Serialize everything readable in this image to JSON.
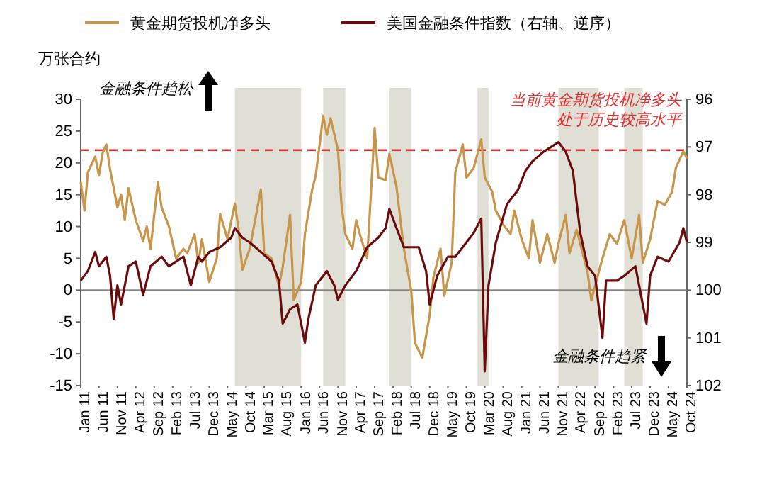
{
  "chart_data": {
    "type": "line",
    "ylabel": "万张合约",
    "legend": "top",
    "xlim": [
      "2011-01",
      "2024-10"
    ],
    "xticks": [
      {
        "value": "2011-01",
        "label": "Jan 11"
      },
      {
        "value": "2011-06",
        "label": "Jun 11"
      },
      {
        "value": "2011-11",
        "label": "Nov 11"
      },
      {
        "value": "2012-04",
        "label": "Apr 12"
      },
      {
        "value": "2012-09",
        "label": "Sep 12"
      },
      {
        "value": "2013-02",
        "label": "Feb 13"
      },
      {
        "value": "2013-07",
        "label": "Jul 13"
      },
      {
        "value": "2013-12",
        "label": "Dec 13"
      },
      {
        "value": "2014-05",
        "label": "May 14"
      },
      {
        "value": "2014-10",
        "label": "Oct 14"
      },
      {
        "value": "2015-03",
        "label": "Mar 15"
      },
      {
        "value": "2015-08",
        "label": "Aug 15"
      },
      {
        "value": "2016-01",
        "label": "Jan 16"
      },
      {
        "value": "2016-06",
        "label": "Jun 16"
      },
      {
        "value": "2016-11",
        "label": "Nov 16"
      },
      {
        "value": "2017-04",
        "label": "Apr 17"
      },
      {
        "value": "2017-09",
        "label": "Sep 17"
      },
      {
        "value": "2018-02",
        "label": "Feb 18"
      },
      {
        "value": "2018-07",
        "label": "Jul 18"
      },
      {
        "value": "2018-12",
        "label": "Dec 18"
      },
      {
        "value": "2019-05",
        "label": "May 19"
      },
      {
        "value": "2019-10",
        "label": "Oct 19"
      },
      {
        "value": "2020-03",
        "label": "Mar 20"
      },
      {
        "value": "2020-08",
        "label": "Aug 20"
      },
      {
        "value": "2021-01",
        "label": "Jan 21"
      },
      {
        "value": "2021-06",
        "label": "Jun 21"
      },
      {
        "value": "2021-11",
        "label": "Nov 21"
      },
      {
        "value": "2022-04",
        "label": "Apr 22"
      },
      {
        "value": "2022-09",
        "label": "Sep 22"
      },
      {
        "value": "2023-02",
        "label": "Feb 23"
      },
      {
        "value": "2023-07",
        "label": "Jul 23"
      },
      {
        "value": "2023-12",
        "label": "Dec 23"
      },
      {
        "value": "2024-05",
        "label": "May 24"
      },
      {
        "value": "2024-10",
        "label": "Oct 24"
      }
    ],
    "ylim": [
      -15,
      30
    ],
    "yticks": [
      -15,
      -10,
      -5,
      0,
      5,
      10,
      15,
      20,
      25,
      30
    ],
    "y2lim": [
      102,
      96
    ],
    "y2ticks": [
      96,
      97,
      98,
      99,
      100,
      101,
      102
    ],
    "series": [
      {
        "name": "黄金期货投机净多头",
        "color": "#c8954a",
        "x": [
          "2011-01",
          "2011-02",
          "2011-03",
          "2011-05",
          "2011-06",
          "2011-07",
          "2011-08",
          "2011-09",
          "2011-11",
          "2011-12",
          "2012-01",
          "2012-02",
          "2012-04",
          "2012-06",
          "2012-07",
          "2012-08",
          "2012-10",
          "2012-11",
          "2013-01",
          "2013-03",
          "2013-05",
          "2013-06",
          "2013-08",
          "2013-09",
          "2013-10",
          "2013-12",
          "2014-02",
          "2014-03",
          "2014-05",
          "2014-07",
          "2014-08",
          "2014-09",
          "2014-11",
          "2015-02",
          "2015-03",
          "2015-05",
          "2015-07",
          "2015-08",
          "2015-10",
          "2015-11",
          "2016-01",
          "2016-02",
          "2016-04",
          "2016-05",
          "2016-07",
          "2016-08",
          "2016-09",
          "2016-11",
          "2016-12",
          "2017-01",
          "2017-03",
          "2017-04",
          "2017-05",
          "2017-07",
          "2017-09",
          "2017-10",
          "2017-12",
          "2018-01",
          "2018-03",
          "2018-05",
          "2018-07",
          "2018-08",
          "2018-10",
          "2018-12",
          "2019-01",
          "2019-03",
          "2019-04",
          "2019-06",
          "2019-07",
          "2019-09",
          "2019-10",
          "2019-12",
          "2020-02",
          "2020-03",
          "2020-05",
          "2020-06",
          "2020-08",
          "2020-10",
          "2020-11",
          "2021-01",
          "2021-03",
          "2021-04",
          "2021-06",
          "2021-08",
          "2021-10",
          "2021-11",
          "2022-01",
          "2022-02",
          "2022-04",
          "2022-06",
          "2022-07",
          "2022-08",
          "2022-10",
          "2022-11",
          "2023-01",
          "2023-03",
          "2023-05",
          "2023-07",
          "2023-09",
          "2023-10",
          "2023-12",
          "2024-02",
          "2024-04",
          "2024-06",
          "2024-07",
          "2024-09",
          "2024-10"
        ],
        "values": [
          17,
          12.5,
          18.5,
          21,
          18,
          21.5,
          22.9,
          19,
          13,
          15,
          11,
          16,
          11,
          7.7,
          10,
          6.5,
          17,
          13,
          10,
          5,
          6.5,
          5.8,
          8.8,
          4.3,
          8,
          1.3,
          5,
          12,
          8,
          13.6,
          9.5,
          3.2,
          6.5,
          15.8,
          5.8,
          5,
          0.6,
          3.6,
          11.8,
          -1.6,
          1.3,
          8.8,
          15.8,
          18,
          27.4,
          24.4,
          27,
          22,
          13.2,
          8.8,
          6.5,
          11,
          8.8,
          5,
          25.5,
          17.7,
          17.3,
          21.4,
          16.2,
          6.5,
          -0.1,
          -8.3,
          -10.6,
          -3.9,
          2,
          6.5,
          -0.9,
          4.3,
          18.5,
          22.9,
          17.7,
          19.2,
          23.7,
          17.7,
          15.5,
          12.5,
          10.3,
          8.8,
          12.5,
          8,
          5,
          11,
          4.3,
          8.8,
          4.3,
          7.3,
          11.8,
          5.8,
          9.5,
          5,
          2.8,
          -1.6,
          2.8,
          5,
          8.8,
          7.3,
          11,
          5,
          11.8,
          4.3,
          8,
          14,
          13.4,
          15.5,
          19.2,
          21.8,
          20.7
        ]
      },
      {
        "name": "美国金融条件指数（右轴、逆序）",
        "color": "#6b0a0a",
        "axis": "y2",
        "x": [
          "2011-01",
          "2011-03",
          "2011-05",
          "2011-06",
          "2011-08",
          "2011-09",
          "2011-10",
          "2011-11",
          "2011-12",
          "2012-02",
          "2012-04",
          "2012-06",
          "2012-08",
          "2012-11",
          "2013-01",
          "2013-03",
          "2013-05",
          "2013-07",
          "2013-09",
          "2013-10",
          "2013-12",
          "2014-03",
          "2014-06",
          "2014-07",
          "2014-09",
          "2014-11",
          "2015-02",
          "2015-05",
          "2015-07",
          "2015-08",
          "2015-10",
          "2015-12",
          "2016-02",
          "2016-03",
          "2016-05",
          "2016-08",
          "2016-10",
          "2016-11",
          "2017-01",
          "2017-04",
          "2017-07",
          "2017-10",
          "2017-12",
          "2018-01",
          "2018-03",
          "2018-05",
          "2018-09",
          "2018-11",
          "2018-12",
          "2019-02",
          "2019-05",
          "2019-07",
          "2019-10",
          "2019-12",
          "2020-02",
          "2020-03",
          "2020-04",
          "2020-06",
          "2020-09",
          "2020-12",
          "2021-02",
          "2021-04",
          "2021-07",
          "2021-09",
          "2021-11",
          "2022-01",
          "2022-03",
          "2022-05",
          "2022-07",
          "2022-09",
          "2022-11",
          "2022-12",
          "2023-03",
          "2023-05",
          "2023-08",
          "2023-11",
          "2023-12",
          "2024-02",
          "2024-05",
          "2024-08",
          "2024-09",
          "2024-10"
        ],
        "values": [
          99.8,
          99.6,
          99.2,
          99.5,
          99.3,
          99.7,
          100.6,
          99.9,
          100.3,
          99.5,
          99.4,
          100.1,
          99.5,
          99.3,
          99.5,
          99.4,
          99.3,
          99.9,
          99.3,
          99.4,
          99.2,
          99.1,
          98.9,
          98.7,
          98.9,
          99,
          99.2,
          99.4,
          99.8,
          100.7,
          100.4,
          100.3,
          101.1,
          100.6,
          99.9,
          99.6,
          99.9,
          100.2,
          99.9,
          99.6,
          99.1,
          98.9,
          98.7,
          98.3,
          98.7,
          99.1,
          99.1,
          99.6,
          100.3,
          99.7,
          99.3,
          99.3,
          99,
          98.8,
          98.5,
          101.7,
          99.9,
          99,
          98.2,
          97.9,
          97.5,
          97.3,
          97.1,
          97,
          96.9,
          97.1,
          97.5,
          98.8,
          99.5,
          99.7,
          101,
          99.8,
          99.8,
          99.7,
          99.5,
          100.7,
          99.7,
          99.3,
          99.4,
          99,
          98.7,
          99
        ]
      }
    ],
    "ref_lines": [
      {
        "axis": "y",
        "value": 22,
        "label": "当前黄金期货投机净多头处于历史较高水平",
        "color": "#e03030",
        "line_style": "dashed"
      }
    ],
    "bands": [
      {
        "axis": "x",
        "from": "2014-07",
        "to": "2016-01",
        "color": "#e0dfd6"
      },
      {
        "axis": "x",
        "from": "2016-07",
        "to": "2017-01",
        "color": "#e0dfd6"
      },
      {
        "axis": "x",
        "from": "2018-01",
        "to": "2018-07",
        "color": "#e0dfd6"
      },
      {
        "axis": "x",
        "from": "2020-01",
        "to": "2020-04",
        "color": "#e0dfd6"
      },
      {
        "axis": "x",
        "from": "2021-11",
        "to": "2022-10",
        "color": "#e0dfd6"
      },
      {
        "axis": "x",
        "from": "2023-05",
        "to": "2023-10",
        "color": "#e0dfd6"
      }
    ],
    "annotations": [
      "金融条件趋松",
      "金融条件趋紧"
    ]
  }
}
